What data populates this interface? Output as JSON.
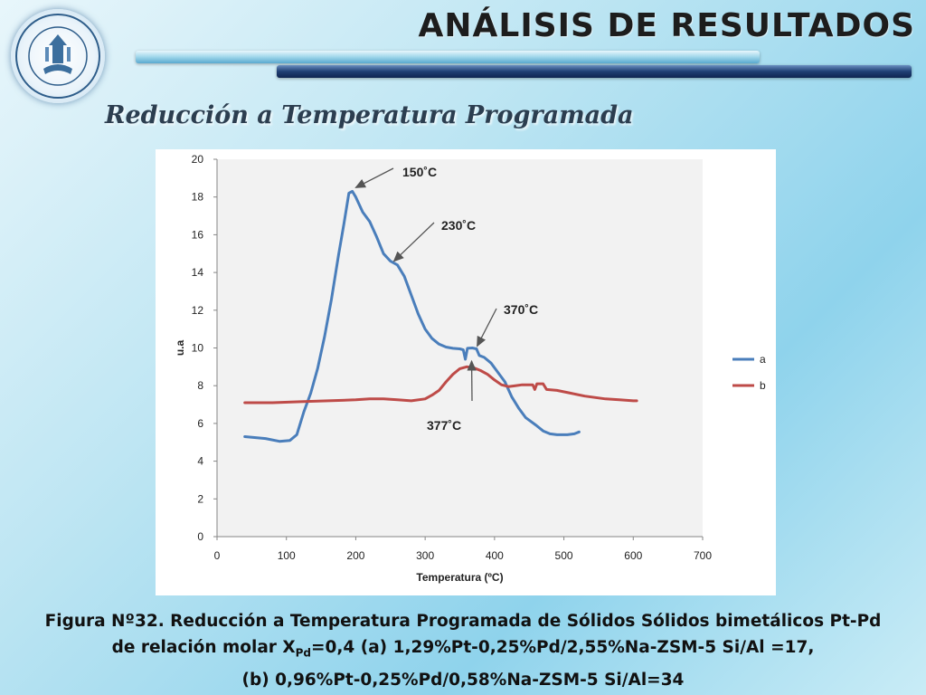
{
  "header": {
    "title": "ANÁLISIS DE RESULTADOS",
    "subtitle": "Reducción a Temperatura Programada",
    "seal_text": "UNIVERSIDAD CENTRAL · CARACAS - VENEZUELA"
  },
  "chart_data": {
    "type": "line",
    "title": "",
    "xlabel": "Temperatura (ºC)",
    "ylabel": "u.a",
    "xlim": [
      0,
      700
    ],
    "ylim": [
      0,
      20
    ],
    "x_ticks": [
      0,
      100,
      200,
      300,
      400,
      500,
      600,
      700
    ],
    "y_ticks": [
      0,
      2,
      4,
      6,
      8,
      10,
      12,
      14,
      16,
      18,
      20
    ],
    "grid": false,
    "legend_position": "right",
    "series": [
      {
        "name": "a",
        "color": "#4a7ebb",
        "points": [
          [
            40,
            5.3
          ],
          [
            70,
            5.2
          ],
          [
            90,
            5.05
          ],
          [
            105,
            5.1
          ],
          [
            115,
            5.4
          ],
          [
            125,
            6.6
          ],
          [
            135,
            7.6
          ],
          [
            145,
            8.9
          ],
          [
            155,
            10.6
          ],
          [
            165,
            12.6
          ],
          [
            175,
            14.9
          ],
          [
            183,
            16.6
          ],
          [
            190,
            18.2
          ],
          [
            195,
            18.3
          ],
          [
            200,
            18.0
          ],
          [
            210,
            17.2
          ],
          [
            220,
            16.7
          ],
          [
            230,
            15.9
          ],
          [
            240,
            15.0
          ],
          [
            250,
            14.6
          ],
          [
            260,
            14.4
          ],
          [
            270,
            13.8
          ],
          [
            280,
            12.8
          ],
          [
            290,
            11.8
          ],
          [
            300,
            11.0
          ],
          [
            310,
            10.5
          ],
          [
            320,
            10.2
          ],
          [
            330,
            10.05
          ],
          [
            340,
            9.98
          ],
          [
            350,
            9.95
          ],
          [
            355,
            9.9
          ],
          [
            358,
            9.4
          ],
          [
            361,
            9.98
          ],
          [
            368,
            10.0
          ],
          [
            374,
            9.95
          ],
          [
            378,
            9.6
          ],
          [
            385,
            9.5
          ],
          [
            395,
            9.2
          ],
          [
            405,
            8.7
          ],
          [
            415,
            8.2
          ],
          [
            425,
            7.4
          ],
          [
            435,
            6.8
          ],
          [
            445,
            6.3
          ],
          [
            460,
            5.9
          ],
          [
            470,
            5.6
          ],
          [
            480,
            5.45
          ],
          [
            490,
            5.4
          ],
          [
            505,
            5.4
          ],
          [
            515,
            5.45
          ],
          [
            522,
            5.55
          ]
        ]
      },
      {
        "name": "b",
        "color": "#be4b48",
        "points": [
          [
            40,
            7.1
          ],
          [
            80,
            7.1
          ],
          [
            120,
            7.15
          ],
          [
            160,
            7.2
          ],
          [
            200,
            7.25
          ],
          [
            220,
            7.3
          ],
          [
            240,
            7.3
          ],
          [
            260,
            7.25
          ],
          [
            280,
            7.2
          ],
          [
            300,
            7.3
          ],
          [
            310,
            7.5
          ],
          [
            320,
            7.75
          ],
          [
            330,
            8.2
          ],
          [
            340,
            8.6
          ],
          [
            350,
            8.9
          ],
          [
            360,
            9.0
          ],
          [
            370,
            8.95
          ],
          [
            380,
            8.8
          ],
          [
            390,
            8.6
          ],
          [
            400,
            8.3
          ],
          [
            410,
            8.05
          ],
          [
            420,
            7.95
          ],
          [
            430,
            8.0
          ],
          [
            440,
            8.05
          ],
          [
            455,
            8.05
          ],
          [
            458,
            7.8
          ],
          [
            461,
            8.1
          ],
          [
            470,
            8.1
          ],
          [
            475,
            7.8
          ],
          [
            490,
            7.75
          ],
          [
            510,
            7.6
          ],
          [
            530,
            7.45
          ],
          [
            560,
            7.3
          ],
          [
            580,
            7.25
          ],
          [
            600,
            7.2
          ],
          [
            605,
            7.2
          ]
        ]
      }
    ],
    "annotations": [
      {
        "text": "150˚C",
        "arrow_x": 200,
        "arrow_y": 18.5
      },
      {
        "text": "230˚C",
        "arrow_x": 255,
        "arrow_y": 14.6
      },
      {
        "text": "370˚C",
        "arrow_x": 375,
        "arrow_y": 10.1
      },
      {
        "text": "377˚C",
        "arrow_x": 367,
        "arrow_y": 9.3
      }
    ]
  },
  "caption": {
    "line1": "Figura Nº32. Reducción a Temperatura Programada de Sólidos Sólidos bimetálicos Pt-Pd",
    "line2_a": "de relación molar X",
    "line2_sub": "Pd",
    "line2_b": "=0,4  (a) 1,29%Pt-0,25%Pd/2,55%Na-ZSM-5 Si/Al =17,",
    "line3": "(b) 0,96%Pt-0,25%Pd/0,58%Na-ZSM-5 Si/Al=34"
  }
}
